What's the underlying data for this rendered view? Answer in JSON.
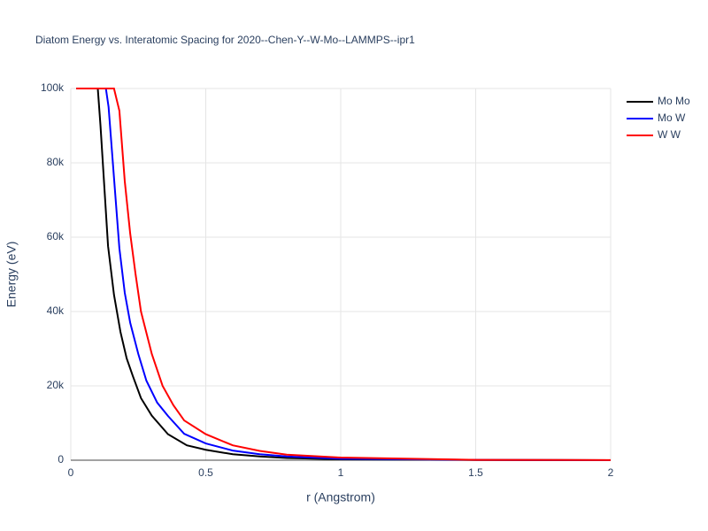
{
  "chart_data": {
    "type": "line",
    "title": "Diatom Energy vs. Interatomic Spacing for 2020--Chen-Y--W-Mo--LAMMPS--ipr1",
    "xlabel": "r (Angstrom)",
    "ylabel": "Energy (eV)",
    "xlim": [
      0,
      2
    ],
    "ylim": [
      0,
      100000
    ],
    "xticks": [
      0,
      0.5,
      1,
      1.5,
      2
    ],
    "yticks": [
      {
        "value": 0,
        "label": "0"
      },
      {
        "value": 20000,
        "label": "20k"
      },
      {
        "value": 40000,
        "label": "40k"
      },
      {
        "value": 60000,
        "label": "60k"
      },
      {
        "value": 80000,
        "label": "80k"
      },
      {
        "value": 100000,
        "label": "100k"
      }
    ],
    "grid": true,
    "legend": "top-right",
    "series": [
      {
        "name": "Mo Mo",
        "color": "#000000",
        "x": [
          0.02,
          0.1,
          0.11,
          0.138,
          0.16,
          0.184,
          0.207,
          0.23,
          0.26,
          0.3,
          0.36,
          0.43,
          0.5,
          0.6,
          0.7,
          0.8,
          1.0,
          1.5,
          2.0
        ],
        "values": [
          100000,
          100000,
          90000,
          57600,
          44500,
          34500,
          27400,
          22600,
          16700,
          12000,
          7000,
          4000,
          2800,
          1600,
          1000,
          600,
          250,
          50,
          0
        ]
      },
      {
        "name": "Mo W",
        "color": "#0000ff",
        "x": [
          0.02,
          0.13,
          0.14,
          0.16,
          0.18,
          0.2,
          0.22,
          0.25,
          0.28,
          0.32,
          0.36,
          0.42,
          0.5,
          0.6,
          0.7,
          0.8,
          1.0,
          1.5,
          2.0
        ],
        "values": [
          100000,
          100000,
          95000,
          76000,
          57000,
          45000,
          37000,
          28600,
          21400,
          15500,
          11900,
          7100,
          4500,
          2600,
          1600,
          1000,
          400,
          80,
          10
        ]
      },
      {
        "name": "W W",
        "color": "#ff0000",
        "x": [
          0.02,
          0.16,
          0.18,
          0.2,
          0.22,
          0.24,
          0.26,
          0.3,
          0.34,
          0.38,
          0.42,
          0.5,
          0.6,
          0.7,
          0.8,
          1.0,
          1.5,
          2.0
        ],
        "values": [
          100000,
          100000,
          94000,
          75000,
          61000,
          50000,
          40000,
          28600,
          20000,
          14800,
          10700,
          7000,
          4000,
          2500,
          1500,
          700,
          100,
          20
        ]
      }
    ]
  }
}
